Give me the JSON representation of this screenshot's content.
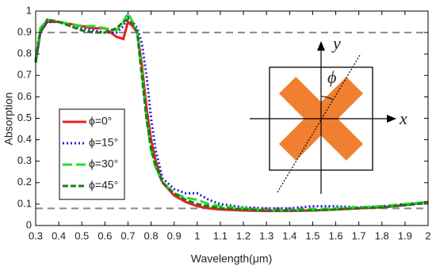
{
  "chart_data": {
    "type": "line",
    "x_label": "Wavelength(μm)",
    "y_label": "Absorption",
    "x": [
      0.3,
      0.32,
      0.35,
      0.4,
      0.45,
      0.5,
      0.55,
      0.6,
      0.65,
      0.68,
      0.7,
      0.72,
      0.74,
      0.76,
      0.78,
      0.8,
      0.82,
      0.85,
      0.9,
      0.95,
      1.0,
      1.05,
      1.1,
      1.2,
      1.3,
      1.4,
      1.5,
      1.6,
      1.7,
      1.8,
      1.9,
      2.0
    ],
    "series": [
      {
        "name": "ϕ=0°",
        "color": "#e8201c",
        "dash": "none",
        "values": [
          0.76,
          0.9,
          0.95,
          0.95,
          0.94,
          0.93,
          0.92,
          0.92,
          0.88,
          0.87,
          0.95,
          0.93,
          0.9,
          0.75,
          0.55,
          0.4,
          0.3,
          0.2,
          0.14,
          0.11,
          0.09,
          0.08,
          0.075,
          0.07,
          0.068,
          0.068,
          0.07,
          0.075,
          0.08,
          0.085,
          0.095,
          0.11
        ]
      },
      {
        "name": "ϕ=15°",
        "color": "#1f1fd0",
        "dash": "2 3",
        "values": [
          0.77,
          0.9,
          0.95,
          0.95,
          0.93,
          0.92,
          0.91,
          0.9,
          0.9,
          0.93,
          0.97,
          0.95,
          0.92,
          0.85,
          0.7,
          0.5,
          0.35,
          0.22,
          0.17,
          0.15,
          0.15,
          0.12,
          0.1,
          0.085,
          0.08,
          0.08,
          0.09,
          0.09,
          0.085,
          0.09,
          0.1,
          0.11
        ]
      },
      {
        "name": "ϕ=30°",
        "color": "#22e022",
        "dash": "12 5",
        "values": [
          0.78,
          0.92,
          0.96,
          0.95,
          0.94,
          0.93,
          0.93,
          0.92,
          0.91,
          0.95,
          0.99,
          0.95,
          0.9,
          0.72,
          0.5,
          0.35,
          0.27,
          0.2,
          0.15,
          0.13,
          0.12,
          0.1,
          0.09,
          0.08,
          0.07,
          0.07,
          0.075,
          0.08,
          0.085,
          0.09,
          0.1,
          0.11
        ]
      },
      {
        "name": "ϕ=45°",
        "color": "#1a7a1a",
        "dash": "7 3",
        "values": [
          0.76,
          0.9,
          0.96,
          0.95,
          0.93,
          0.91,
          0.9,
          0.9,
          0.92,
          0.95,
          0.96,
          0.94,
          0.9,
          0.7,
          0.5,
          0.36,
          0.28,
          0.2,
          0.15,
          0.12,
          0.1,
          0.09,
          0.08,
          0.075,
          0.07,
          0.07,
          0.07,
          0.075,
          0.08,
          0.085,
          0.095,
          0.105
        ]
      }
    ],
    "reference_lines": [
      0.9,
      0.08
    ],
    "xlim": [
      0.3,
      2
    ],
    "xticks": [
      0.3,
      0.4,
      0.5,
      0.6,
      0.7,
      0.8,
      0.9,
      1,
      1.1,
      1.2,
      1.3,
      1.4,
      1.5,
      1.6,
      1.7,
      1.8,
      1.9,
      2
    ],
    "ylim": [
      0,
      1
    ],
    "yticks": [
      0,
      0.1,
      0.2,
      0.3,
      0.4,
      0.5,
      0.6,
      0.7,
      0.8,
      0.9,
      1
    ],
    "legend": "center left",
    "inset": {
      "x_label": "x",
      "y_label": "y",
      "angle_label": "ϕ"
    }
  }
}
